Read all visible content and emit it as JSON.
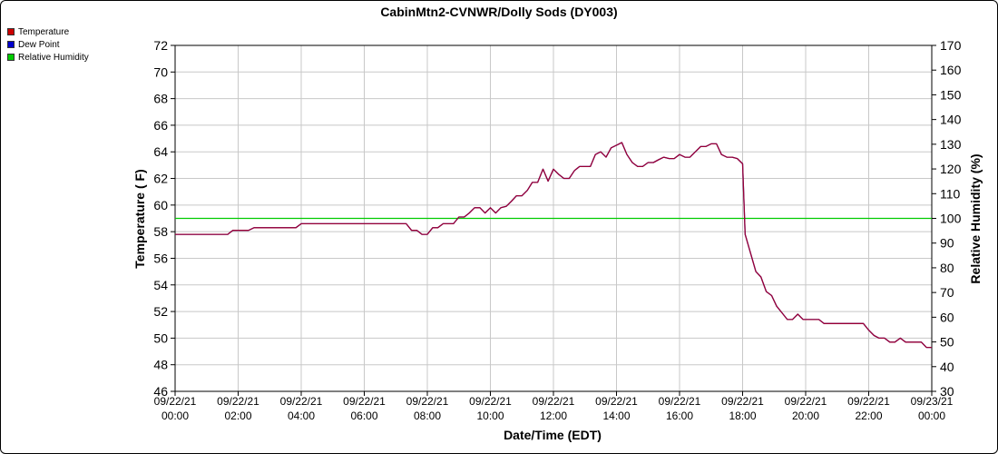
{
  "chart_data": {
    "type": "line",
    "title": "CabinMtn2-CVNWR/Dolly Sods (DY003)",
    "xlabel": "Date/Time (EDT)",
    "ylabel_left": "Temperature ( F)",
    "ylabel_right": "Relative Humidity (%)",
    "ylim_left": [
      46,
      72
    ],
    "ylim_right": [
      30,
      170
    ],
    "yticks_left": [
      46,
      48,
      50,
      52,
      54,
      56,
      58,
      60,
      62,
      64,
      66,
      68,
      70,
      72
    ],
    "yticks_right": [
      30,
      40,
      50,
      60,
      70,
      80,
      90,
      100,
      110,
      120,
      130,
      140,
      150,
      160,
      170
    ],
    "xlim_hours": [
      0,
      24
    ],
    "xticks": [
      {
        "h": 0,
        "date": "09/22/21",
        "time": "00:00"
      },
      {
        "h": 2,
        "date": "09/22/21",
        "time": "02:00"
      },
      {
        "h": 4,
        "date": "09/22/21",
        "time": "04:00"
      },
      {
        "h": 6,
        "date": "09/22/21",
        "time": "06:00"
      },
      {
        "h": 8,
        "date": "09/22/21",
        "time": "08:00"
      },
      {
        "h": 10,
        "date": "09/22/21",
        "time": "10:00"
      },
      {
        "h": 12,
        "date": "09/22/21",
        "time": "12:00"
      },
      {
        "h": 14,
        "date": "09/22/21",
        "time": "14:00"
      },
      {
        "h": 16,
        "date": "09/22/21",
        "time": "16:00"
      },
      {
        "h": 18,
        "date": "09/22/21",
        "time": "18:00"
      },
      {
        "h": 20,
        "date": "09/22/21",
        "time": "20:00"
      },
      {
        "h": 22,
        "date": "09/22/21",
        "time": "22:00"
      },
      {
        "h": 24,
        "date": "09/23/21",
        "time": "00:00"
      }
    ],
    "grid": true,
    "legend_position": "top-left outside",
    "series": [
      {
        "name": "Temperature",
        "color": "#cc0000",
        "axis": "left",
        "points": [
          [
            0,
            57.8
          ],
          [
            1.67,
            57.8
          ],
          [
            1.83,
            58.1
          ],
          [
            2.33,
            58.1
          ],
          [
            2.5,
            58.3
          ],
          [
            3.83,
            58.3
          ],
          [
            4.0,
            58.6
          ],
          [
            7.33,
            58.6
          ],
          [
            7.5,
            58.1
          ],
          [
            7.67,
            58.1
          ],
          [
            7.83,
            57.8
          ],
          [
            8.0,
            57.8
          ],
          [
            8.17,
            58.3
          ],
          [
            8.33,
            58.3
          ],
          [
            8.5,
            58.6
          ],
          [
            8.83,
            58.6
          ],
          [
            9.0,
            59.1
          ],
          [
            9.17,
            59.1
          ],
          [
            9.33,
            59.4
          ],
          [
            9.5,
            59.8
          ],
          [
            9.67,
            59.8
          ],
          [
            9.83,
            59.4
          ],
          [
            10.0,
            59.8
          ],
          [
            10.17,
            59.4
          ],
          [
            10.33,
            59.8
          ],
          [
            10.5,
            59.9
          ],
          [
            10.67,
            60.3
          ],
          [
            10.83,
            60.7
          ],
          [
            11.0,
            60.7
          ],
          [
            11.17,
            61.1
          ],
          [
            11.33,
            61.7
          ],
          [
            11.5,
            61.7
          ],
          [
            11.67,
            62.7
          ],
          [
            11.83,
            61.8
          ],
          [
            12.0,
            62.7
          ],
          [
            12.17,
            62.3
          ],
          [
            12.33,
            62.0
          ],
          [
            12.5,
            62.0
          ],
          [
            12.67,
            62.6
          ],
          [
            12.83,
            62.9
          ],
          [
            13.17,
            62.9
          ],
          [
            13.33,
            63.8
          ],
          [
            13.5,
            64.0
          ],
          [
            13.67,
            63.6
          ],
          [
            13.83,
            64.3
          ],
          [
            14.0,
            64.5
          ],
          [
            14.17,
            64.7
          ],
          [
            14.33,
            63.8
          ],
          [
            14.5,
            63.2
          ],
          [
            14.67,
            62.9
          ],
          [
            14.83,
            62.9
          ],
          [
            15.0,
            63.2
          ],
          [
            15.17,
            63.2
          ],
          [
            15.33,
            63.4
          ],
          [
            15.5,
            63.6
          ],
          [
            15.67,
            63.5
          ],
          [
            15.83,
            63.5
          ],
          [
            16.0,
            63.8
          ],
          [
            16.17,
            63.6
          ],
          [
            16.33,
            63.6
          ],
          [
            16.5,
            64.0
          ],
          [
            16.67,
            64.4
          ],
          [
            16.83,
            64.4
          ],
          [
            17.0,
            64.6
          ],
          [
            17.17,
            64.6
          ],
          [
            17.33,
            63.8
          ],
          [
            17.5,
            63.6
          ],
          [
            17.67,
            63.6
          ],
          [
            17.83,
            63.5
          ],
          [
            18.0,
            63.1
          ],
          [
            18.08,
            57.8
          ],
          [
            18.25,
            56.4
          ],
          [
            18.42,
            55.0
          ],
          [
            18.58,
            54.6
          ],
          [
            18.75,
            53.5
          ],
          [
            18.92,
            53.2
          ],
          [
            19.08,
            52.4
          ],
          [
            19.25,
            51.9
          ],
          [
            19.42,
            51.4
          ],
          [
            19.58,
            51.4
          ],
          [
            19.75,
            51.8
          ],
          [
            19.92,
            51.4
          ],
          [
            20.42,
            51.4
          ],
          [
            20.58,
            51.1
          ],
          [
            21.83,
            51.1
          ],
          [
            22.0,
            50.6
          ],
          [
            22.17,
            50.2
          ],
          [
            22.33,
            50.0
          ],
          [
            22.5,
            50.0
          ],
          [
            22.67,
            49.7
          ],
          [
            22.83,
            49.7
          ],
          [
            23.0,
            50.0
          ],
          [
            23.17,
            49.7
          ],
          [
            23.67,
            49.7
          ],
          [
            23.83,
            49.3
          ],
          [
            24.0,
            49.3
          ]
        ]
      },
      {
        "name": "Dew Point",
        "color": "#0000cc",
        "axis": "left",
        "points": [
          [
            0,
            57.8
          ],
          [
            1.67,
            57.8
          ],
          [
            1.83,
            58.1
          ],
          [
            2.33,
            58.1
          ],
          [
            2.5,
            58.3
          ],
          [
            3.83,
            58.3
          ],
          [
            4.0,
            58.6
          ],
          [
            7.33,
            58.6
          ],
          [
            7.5,
            58.1
          ],
          [
            7.67,
            58.1
          ],
          [
            7.83,
            57.8
          ],
          [
            8.0,
            57.8
          ],
          [
            8.17,
            58.3
          ],
          [
            8.33,
            58.3
          ],
          [
            8.5,
            58.6
          ],
          [
            8.83,
            58.6
          ],
          [
            9.0,
            59.1
          ],
          [
            9.17,
            59.1
          ],
          [
            9.33,
            59.4
          ],
          [
            9.5,
            59.8
          ],
          [
            9.67,
            59.8
          ],
          [
            9.83,
            59.4
          ],
          [
            10.0,
            59.8
          ],
          [
            10.17,
            59.4
          ],
          [
            10.33,
            59.8
          ],
          [
            10.5,
            59.9
          ],
          [
            10.67,
            60.3
          ],
          [
            10.83,
            60.7
          ],
          [
            11.0,
            60.7
          ],
          [
            11.17,
            61.1
          ],
          [
            11.33,
            61.7
          ],
          [
            11.5,
            61.7
          ],
          [
            11.67,
            62.7
          ],
          [
            11.83,
            61.8
          ],
          [
            12.0,
            62.7
          ],
          [
            12.17,
            62.3
          ],
          [
            12.33,
            62.0
          ],
          [
            12.5,
            62.0
          ],
          [
            12.67,
            62.6
          ],
          [
            12.83,
            62.9
          ],
          [
            13.17,
            62.9
          ],
          [
            13.33,
            63.8
          ],
          [
            13.5,
            64.0
          ],
          [
            13.67,
            63.6
          ],
          [
            13.83,
            64.3
          ],
          [
            14.0,
            64.5
          ],
          [
            14.17,
            64.7
          ],
          [
            14.33,
            63.8
          ],
          [
            14.5,
            63.2
          ],
          [
            14.67,
            62.9
          ],
          [
            14.83,
            62.9
          ],
          [
            15.0,
            63.2
          ],
          [
            15.17,
            63.2
          ],
          [
            15.33,
            63.4
          ],
          [
            15.5,
            63.6
          ],
          [
            15.67,
            63.5
          ],
          [
            15.83,
            63.5
          ],
          [
            16.0,
            63.8
          ],
          [
            16.17,
            63.6
          ],
          [
            16.33,
            63.6
          ],
          [
            16.5,
            64.0
          ],
          [
            16.67,
            64.4
          ],
          [
            16.83,
            64.4
          ],
          [
            17.0,
            64.6
          ],
          [
            17.17,
            64.6
          ],
          [
            17.33,
            63.8
          ],
          [
            17.5,
            63.6
          ],
          [
            17.67,
            63.6
          ],
          [
            17.83,
            63.5
          ],
          [
            18.0,
            63.1
          ],
          [
            18.08,
            57.8
          ],
          [
            18.25,
            56.4
          ],
          [
            18.42,
            55.0
          ],
          [
            18.58,
            54.6
          ],
          [
            18.75,
            53.5
          ],
          [
            18.92,
            53.2
          ],
          [
            19.08,
            52.4
          ],
          [
            19.25,
            51.9
          ],
          [
            19.42,
            51.4
          ],
          [
            19.58,
            51.4
          ],
          [
            19.75,
            51.8
          ],
          [
            19.92,
            51.4
          ],
          [
            20.42,
            51.4
          ],
          [
            20.58,
            51.1
          ],
          [
            21.83,
            51.1
          ],
          [
            22.0,
            50.6
          ],
          [
            22.17,
            50.2
          ],
          [
            22.33,
            50.0
          ],
          [
            22.5,
            50.0
          ],
          [
            22.67,
            49.7
          ],
          [
            22.83,
            49.7
          ],
          [
            23.0,
            50.0
          ],
          [
            23.17,
            49.7
          ],
          [
            23.67,
            49.7
          ],
          [
            23.83,
            49.3
          ],
          [
            24.0,
            49.3
          ]
        ]
      },
      {
        "name": "Relative Humidity",
        "color": "#00cc00",
        "axis": "right",
        "points": [
          [
            0,
            100
          ],
          [
            24,
            100
          ]
        ]
      }
    ]
  }
}
